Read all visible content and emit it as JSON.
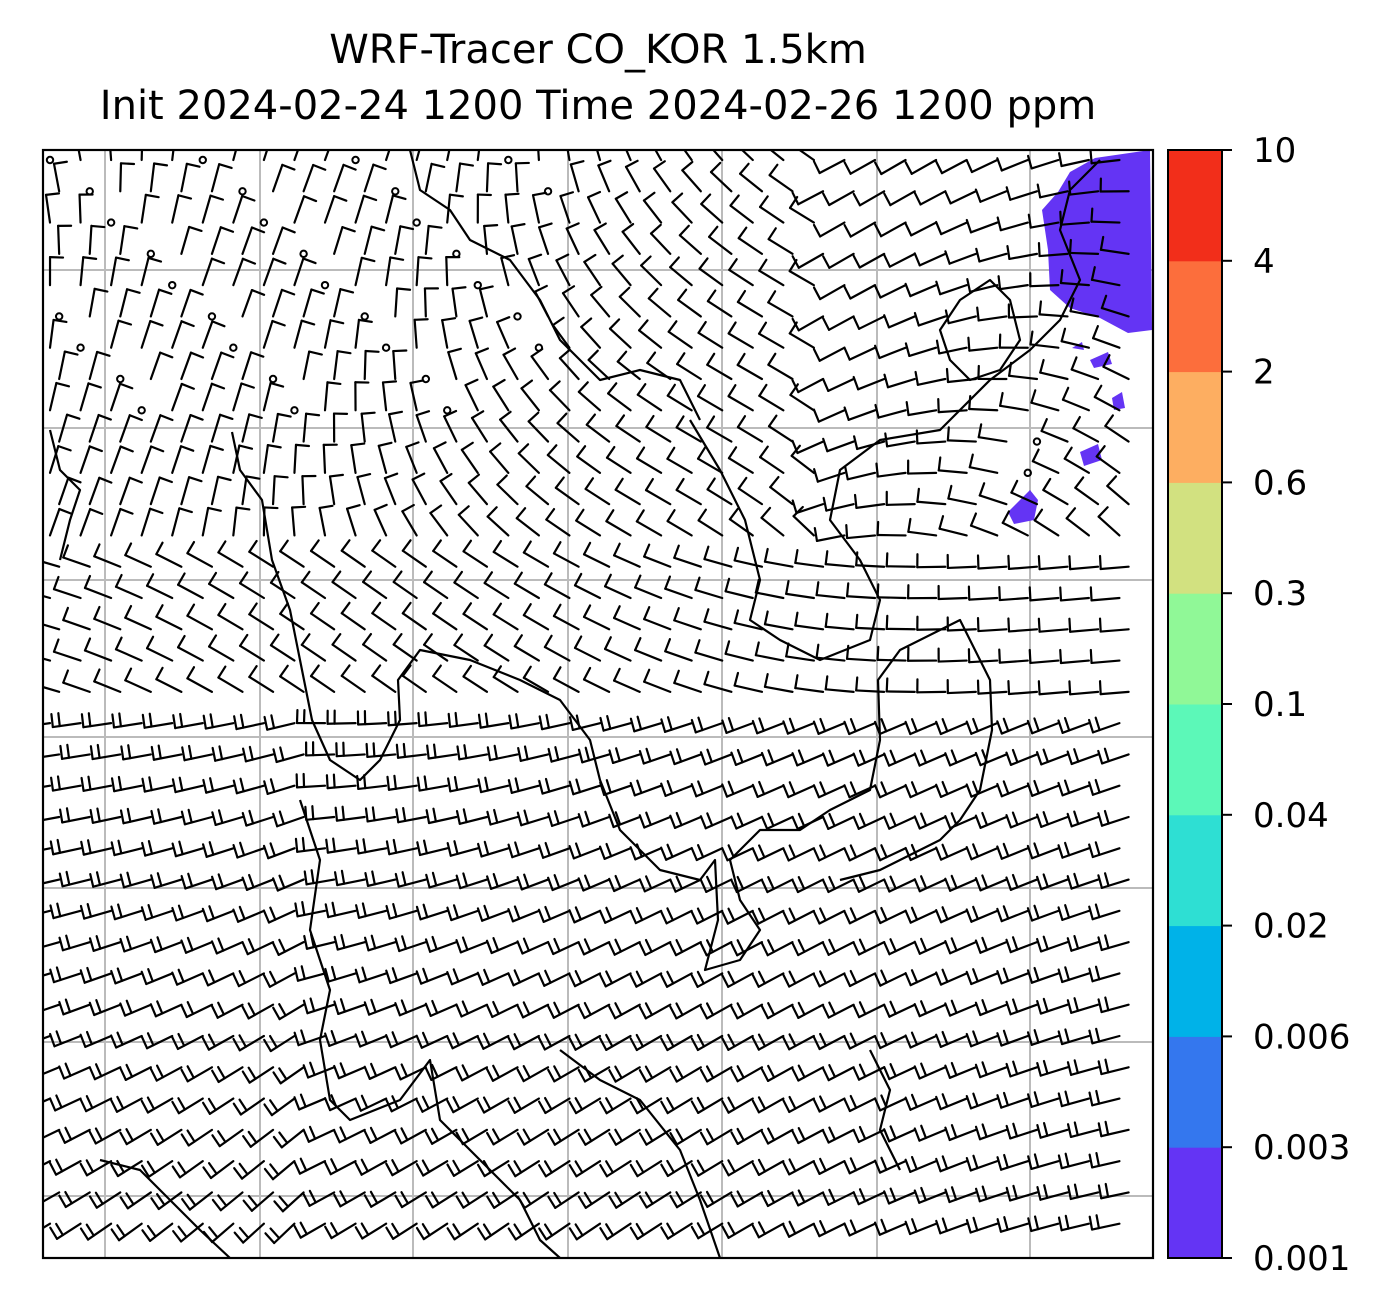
{
  "title_line1": "WRF-Tracer CO_KOR 1.5km",
  "title_line2": "Init 2024-02-24 1200 Time 2024-02-26 1200 ppm",
  "colorbar": {
    "levels": [
      "0.001",
      "0.003",
      "0.006",
      "0.02",
      "0.04",
      "0.1",
      "0.3",
      "0.6",
      "2",
      "4",
      "10"
    ],
    "colors": [
      "#6434f4",
      "#3477ee",
      "#00b2e8",
      "#2edfd3",
      "#5cf8b8",
      "#90f897",
      "#d2e180",
      "#fdae61",
      "#fc6e3c",
      "#f22e1a"
    ]
  },
  "field_color": "#6434f4",
  "grid_color": "#bbbbbb"
}
